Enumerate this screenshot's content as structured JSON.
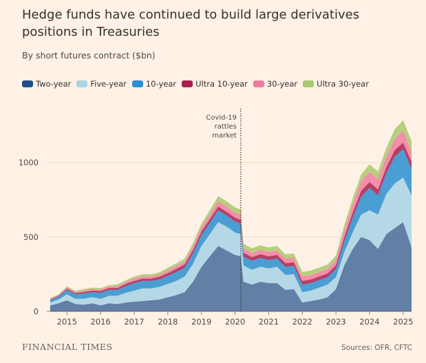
{
  "title": "Hedge funds have continued to build large derivatives positions in Treasuries",
  "subtitle": "By short futures contract ($bn)",
  "footer": {
    "brand": "FINANCIAL TIMES",
    "source": "Sources: OFR, CFTC"
  },
  "chart_data": {
    "type": "area",
    "stacked": true,
    "x": [
      2014.5,
      2014.75,
      2015.0,
      2015.25,
      2015.5,
      2015.75,
      2016.0,
      2016.25,
      2016.5,
      2016.75,
      2017.0,
      2017.25,
      2017.5,
      2017.75,
      2018.0,
      2018.25,
      2018.5,
      2018.75,
      2019.0,
      2019.25,
      2019.5,
      2019.75,
      2020.0,
      2020.17,
      2020.25,
      2020.5,
      2020.75,
      2021.0,
      2021.25,
      2021.5,
      2021.75,
      2022.0,
      2022.25,
      2022.5,
      2022.75,
      2023.0,
      2023.25,
      2023.5,
      2023.75,
      2024.0,
      2024.25,
      2024.5,
      2024.75,
      2025.0,
      2025.25
    ],
    "series": [
      {
        "name": "Two-year",
        "color": "#204f8a",
        "values": [
          40,
          55,
          75,
          50,
          45,
          55,
          40,
          55,
          50,
          60,
          65,
          70,
          75,
          80,
          95,
          110,
          130,
          200,
          300,
          370,
          440,
          410,
          380,
          370,
          200,
          180,
          200,
          190,
          190,
          145,
          150,
          60,
          70,
          80,
          95,
          150,
          310,
          420,
          500,
          480,
          420,
          520,
          560,
          600,
          430
        ]
      },
      {
        "name": "Five-year",
        "color": "#a8d4e6",
        "values": [
          20,
          25,
          40,
          35,
          40,
          40,
          45,
          50,
          55,
          65,
          75,
          85,
          80,
          85,
          90,
          95,
          105,
          120,
          140,
          150,
          160,
          160,
          150,
          150,
          110,
          100,
          100,
          100,
          110,
          100,
          100,
          70,
          70,
          80,
          85,
          80,
          90,
          110,
          150,
          200,
          230,
          270,
          300,
          300,
          350
        ]
      },
      {
        "name": "10-year",
        "color": "#2a8fd0",
        "values": [
          15,
          20,
          30,
          30,
          35,
          35,
          40,
          40,
          40,
          45,
          50,
          50,
          50,
          50,
          55,
          60,
          60,
          70,
          75,
          75,
          80,
          75,
          75,
          70,
          60,
          60,
          60,
          55,
          55,
          55,
          55,
          50,
          50,
          50,
          50,
          55,
          70,
          100,
          120,
          150,
          130,
          140,
          180,
          190,
          180
        ]
      },
      {
        "name": "Ultra 10-year",
        "color": "#a82050",
        "values": [
          5,
          5,
          8,
          8,
          10,
          10,
          12,
          12,
          12,
          15,
          15,
          15,
          15,
          18,
          18,
          20,
          20,
          22,
          22,
          25,
          25,
          25,
          25,
          25,
          25,
          25,
          25,
          25,
          25,
          25,
          25,
          25,
          25,
          25,
          25,
          25,
          30,
          35,
          40,
          40,
          40,
          40,
          45,
          45,
          45
        ]
      },
      {
        "name": "30-year",
        "color": "#f27ca1",
        "values": [
          5,
          5,
          8,
          8,
          10,
          10,
          10,
          10,
          12,
          12,
          15,
          15,
          15,
          15,
          18,
          20,
          20,
          25,
          28,
          30,
          35,
          35,
          35,
          35,
          30,
          30,
          30,
          30,
          30,
          30,
          30,
          30,
          30,
          30,
          30,
          35,
          45,
          55,
          65,
          70,
          65,
          70,
          75,
          80,
          70
        ]
      },
      {
        "name": "Ultra 30-year",
        "color": "#a9c96c",
        "values": [
          5,
          5,
          8,
          8,
          10,
          10,
          10,
          10,
          12,
          12,
          15,
          15,
          15,
          15,
          18,
          18,
          20,
          22,
          25,
          30,
          35,
          35,
          35,
          35,
          30,
          30,
          30,
          30,
          30,
          30,
          30,
          30,
          30,
          30,
          30,
          30,
          35,
          40,
          45,
          50,
          55,
          60,
          65,
          70,
          70
        ]
      }
    ],
    "xlim": [
      2014.4,
      2025.25
    ],
    "ylim": [
      0,
      1400
    ],
    "x_ticks": [
      2015,
      2016,
      2017,
      2018,
      2019,
      2020,
      2021,
      2022,
      2023,
      2024,
      2025
    ],
    "y_ticks": [
      0,
      500,
      1000
    ],
    "grid": true,
    "legend": "top-left",
    "annotation": {
      "x": 2020.17,
      "lines": [
        "Covid-19",
        "rattles",
        "market"
      ]
    }
  }
}
